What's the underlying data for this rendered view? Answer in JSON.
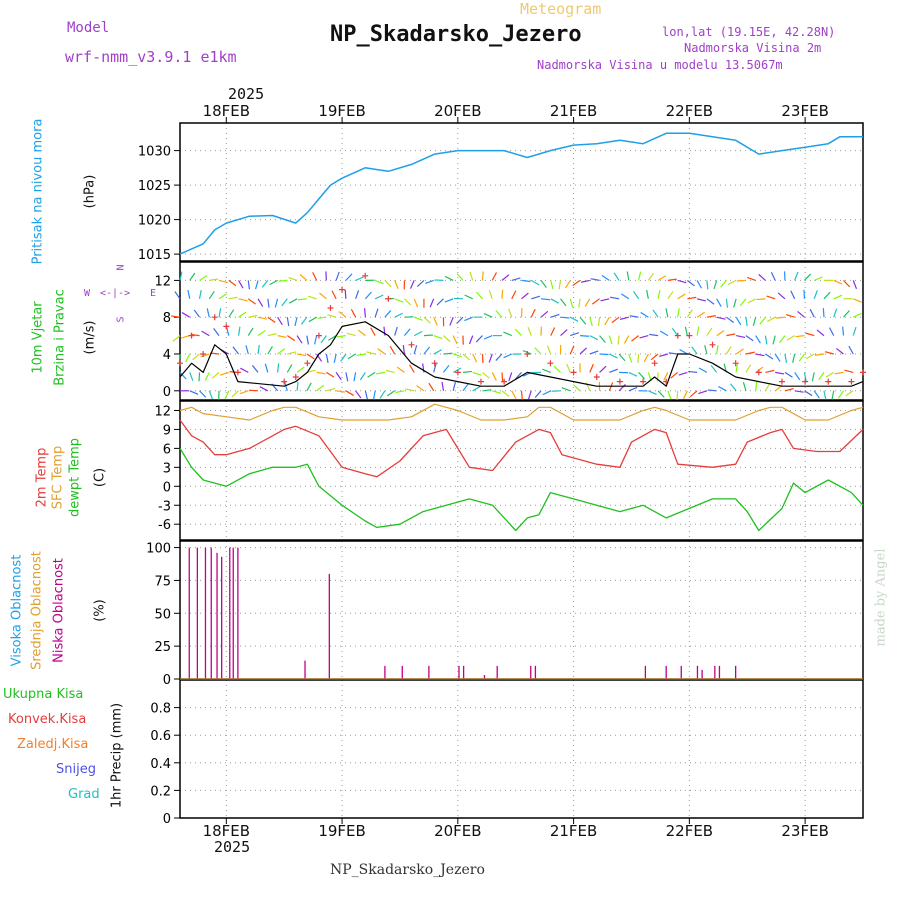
{
  "header": {
    "meteogram_label": "Meteogram",
    "station": "NP_Skadarsko_Jezero",
    "model_label": "Model",
    "model_name": "wrf-nmm_v3.9.1 e1km",
    "lonlat": "lon,lat (19.15E, 42.28N)",
    "elevation": "Nadmorska Visina 2m",
    "model_elevation": "Nadmorska Visina u modelu 13.5067m",
    "footer_station": "NP_Skadarsko_Jezero",
    "watermark": "made by Angel",
    "year_top": "2025",
    "year_bottom": "2025"
  },
  "colors": {
    "pressure": "#1ea0e6",
    "temp2m": "#e63c3c",
    "sfc_temp": "#e0a030",
    "dewpoint": "#20c020",
    "cloud_low": "#c0008c",
    "wind_mean": "#000000",
    "gust": "#e63c3c",
    "title_purple": "#a040c8",
    "meteogram_orange": "#f0c870"
  },
  "chart_data": [
    {
      "type": "line",
      "name": "pressure",
      "labels": [
        "Pritisak na nivou mora",
        "(hPa)"
      ],
      "ylim": [
        1014,
        1034
      ],
      "yticks": [
        1015,
        1020,
        1025,
        1030
      ],
      "xlim": [
        17.6,
        23.5
      ],
      "grid": true,
      "series": [
        {
          "name": "",
          "x": [
            17.6,
            17.8,
            17.9,
            18.0,
            18.2,
            18.4,
            18.6,
            18.7,
            18.8,
            18.9,
            19.0,
            19.2,
            19.4,
            19.6,
            19.8,
            20.0,
            20.2,
            20.4,
            20.6,
            20.8,
            21.0,
            21.2,
            21.4,
            21.6,
            21.8,
            22.0,
            22.2,
            22.4,
            22.6,
            22.8,
            23.0,
            23.2,
            23.3,
            23.5
          ],
          "y": [
            1015,
            1016.5,
            1018.5,
            1019.5,
            1020.5,
            1020.6,
            1019.5,
            1021,
            1023,
            1025,
            1026,
            1027.5,
            1027,
            1028,
            1029.5,
            1030,
            1030,
            1030,
            1029,
            1030,
            1030.8,
            1031,
            1031.5,
            1031,
            1032.5,
            1032.5,
            1032,
            1031.5,
            1029.5,
            1030,
            1030.5,
            1031,
            1032,
            1032
          ]
        }
      ]
    },
    {
      "type": "line",
      "name": "wind",
      "labels": [
        "10m Vjetar",
        "Brzina i Pravac",
        "(m/s)"
      ],
      "compass": {
        "n": "N",
        "s": "S",
        "w": "W",
        "e": "E"
      },
      "ylim": [
        -1,
        14
      ],
      "yticks": [
        0,
        4,
        8,
        12
      ],
      "xlim": [
        17.6,
        23.5
      ],
      "grid": true,
      "series": [
        {
          "name": "mean",
          "x": [
            17.6,
            17.7,
            17.8,
            17.9,
            18.0,
            18.1,
            18.5,
            18.6,
            18.7,
            18.8,
            18.9,
            19.0,
            19.2,
            19.4,
            19.6,
            19.8,
            20.0,
            20.2,
            20.4,
            20.6,
            20.8,
            21.0,
            21.2,
            21.4,
            21.6,
            21.7,
            21.8,
            21.9,
            22.0,
            22.2,
            22.4,
            22.6,
            22.8,
            23.0,
            23.2,
            23.4,
            23.5
          ],
          "y": [
            1.5,
            3,
            2,
            5,
            4,
            1,
            0.5,
            1,
            2,
            4,
            5,
            7,
            7.5,
            6,
            3,
            1.5,
            1,
            0.5,
            0.5,
            2,
            1.5,
            1,
            0.5,
            0.5,
            0.5,
            1.5,
            0.5,
            4,
            4,
            3,
            1.5,
            1,
            0.5,
            0.5,
            0.5,
            0.5,
            1
          ]
        },
        {
          "name": "gust",
          "x": [
            17.6,
            17.7,
            17.8,
            17.9,
            18.0,
            18.1,
            18.5,
            18.6,
            18.7,
            18.8,
            18.9,
            19.0,
            19.2,
            19.4,
            19.6,
            19.8,
            20.0,
            20.2,
            20.4,
            20.6,
            20.8,
            21.0,
            21.2,
            21.4,
            21.6,
            21.7,
            21.8,
            21.9,
            22.0,
            22.2,
            22.4,
            22.6,
            22.8,
            23.0,
            23.2,
            23.4,
            23.5
          ],
          "y": [
            3,
            6,
            4,
            8,
            7,
            2,
            1,
            1.5,
            3,
            6,
            9,
            11,
            12.5,
            10,
            5,
            3,
            2,
            1,
            1,
            4,
            3,
            2,
            1.5,
            1,
            1,
            3,
            1,
            6,
            6,
            5,
            3,
            2,
            1,
            1,
            1,
            1,
            2
          ]
        }
      ]
    },
    {
      "type": "line",
      "name": "temperature",
      "labels": [
        "2m Temp",
        "SFC Temp",
        "dewpt Temp",
        "(C)"
      ],
      "ylim": [
        -8.5,
        13.5
      ],
      "yticks": [
        12,
        9,
        6,
        3,
        0,
        -3,
        -6
      ],
      "xlim": [
        17.6,
        23.5
      ],
      "grid": true,
      "series": [
        {
          "name": "2m Temp",
          "x": [
            17.6,
            17.7,
            17.8,
            17.9,
            18.0,
            18.1,
            18.2,
            18.4,
            18.5,
            18.6,
            18.8,
            19.0,
            19.2,
            19.3,
            19.5,
            19.7,
            19.9,
            20.1,
            20.3,
            20.5,
            20.7,
            20.8,
            20.9,
            21.2,
            21.4,
            21.5,
            21.7,
            21.8,
            21.9,
            22.2,
            22.4,
            22.5,
            22.7,
            22.8,
            22.9,
            23.1,
            23.3,
            23.5
          ],
          "y": [
            10.5,
            8,
            7,
            5,
            5,
            5.5,
            6,
            8,
            9,
            9.5,
            8,
            3,
            2,
            1.5,
            4,
            8,
            9,
            3,
            2.5,
            7,
            9,
            8.5,
            5,
            3.5,
            3,
            7,
            9,
            8.5,
            3.5,
            3,
            3.5,
            7,
            8.5,
            9,
            6,
            5.5,
            5.5,
            9
          ]
        },
        {
          "name": "SFC Temp",
          "x": [
            17.6,
            17.7,
            17.8,
            18.0,
            18.2,
            18.4,
            18.5,
            18.6,
            18.8,
            19.0,
            19.2,
            19.4,
            19.6,
            19.8,
            20.0,
            20.2,
            20.4,
            20.6,
            20.7,
            20.8,
            21.0,
            21.2,
            21.4,
            21.6,
            21.7,
            21.8,
            22.0,
            22.2,
            22.4,
            22.6,
            22.7,
            22.8,
            23.0,
            23.2,
            23.4,
            23.5
          ],
          "y": [
            12,
            12.5,
            11.5,
            11,
            10.5,
            12,
            12.5,
            12.5,
            11,
            10.5,
            10.5,
            10.5,
            11,
            13,
            12,
            10.5,
            10.5,
            11,
            12.5,
            12.5,
            10.5,
            10.5,
            10.5,
            12,
            12.5,
            12,
            10.5,
            10.5,
            10.5,
            12,
            12.5,
            12.5,
            10.5,
            10.5,
            12,
            12.5
          ]
        },
        {
          "name": "dewpt Temp",
          "x": [
            17.6,
            17.7,
            17.8,
            18.0,
            18.2,
            18.4,
            18.6,
            18.7,
            18.8,
            19.0,
            19.2,
            19.3,
            19.5,
            19.7,
            19.9,
            20.1,
            20.3,
            20.5,
            20.6,
            20.7,
            20.8,
            21.0,
            21.2,
            21.4,
            21.6,
            21.8,
            22.0,
            22.2,
            22.4,
            22.5,
            22.6,
            22.8,
            22.9,
            23.0,
            23.2,
            23.4,
            23.5
          ],
          "y": [
            6,
            3,
            1,
            0,
            2,
            3,
            3,
            3.5,
            0,
            -3,
            -5.5,
            -6.5,
            -6,
            -4,
            -3,
            -2,
            -3,
            -7,
            -5,
            -4.5,
            -1,
            -2,
            -3,
            -4,
            -3,
            -5,
            -3.5,
            -2,
            -2,
            -4,
            -7,
            -3.5,
            0.5,
            -1,
            1,
            -1,
            -3
          ]
        }
      ]
    },
    {
      "type": "bar",
      "name": "cloud",
      "labels": [
        "Visoka Oblacnost",
        "Srednja Oblacnost",
        "Niska Oblacnost",
        "(%)"
      ],
      "ylim": [
        0,
        105
      ],
      "yticks": [
        0,
        25,
        50,
        75,
        100
      ],
      "xlim": [
        17.6,
        23.5
      ],
      "grid": true,
      "series": [
        {
          "name": "Niska Oblacnost",
          "x": [
            17.68,
            17.75,
            17.82,
            17.87,
            17.92,
            17.96,
            18.03,
            18.06,
            18.1,
            18.68,
            18.89,
            19.37,
            19.52,
            19.75,
            20.01,
            20.05,
            20.23,
            20.34,
            20.63,
            20.67,
            21.62,
            21.8,
            21.93,
            22.07,
            22.11,
            22.22,
            22.26,
            22.4
          ],
          "y": [
            100,
            100,
            100,
            100,
            96,
            93,
            100,
            100,
            100,
            14,
            80,
            10,
            10,
            10,
            10,
            10,
            3,
            10,
            10,
            10,
            10,
            10,
            10,
            10,
            7,
            10,
            10,
            10
          ]
        }
      ]
    },
    {
      "type": "line",
      "name": "precip",
      "labels": [
        "Ukupna Kisa",
        "Konvek.Kisa",
        "Zaledj.Kisa",
        "Snijeg",
        "Grad",
        "1hr Precip (mm)"
      ],
      "ylim": [
        0,
        1
      ],
      "yticks": [
        0,
        0.2,
        0.4,
        0.6,
        0.8
      ],
      "xlim": [
        17.6,
        23.5
      ],
      "grid": true,
      "series": []
    }
  ],
  "x_axis": {
    "ticks": [
      18,
      19,
      20,
      21,
      22,
      23
    ],
    "labels": [
      "18FEB",
      "19FEB",
      "20FEB",
      "21FEB",
      "22FEB",
      "23FEB"
    ]
  }
}
